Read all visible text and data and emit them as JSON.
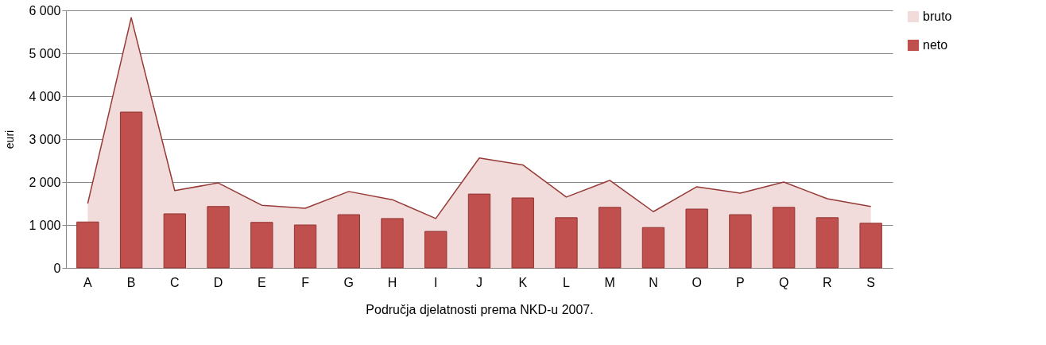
{
  "chart_data": {
    "type": "bar",
    "xlabel": "Područja djelatnosti prema  NKD-u 2007.",
    "ylabel": "euri",
    "categories": [
      "A",
      "B",
      "C",
      "D",
      "E",
      "F",
      "G",
      "H",
      "I",
      "J",
      "K",
      "L",
      "M",
      "N",
      "O",
      "P",
      "Q",
      "R",
      "S"
    ],
    "series": [
      {
        "name": "bruto",
        "type": "area",
        "color": "#f2dcdb",
        "values": [
          1500,
          5830,
          1800,
          1980,
          1460,
          1390,
          1780,
          1590,
          1150,
          2560,
          2400,
          1650,
          2040,
          1310,
          1890,
          1740,
          2000,
          1610,
          1430
        ]
      },
      {
        "name": "neto",
        "color": "#c0504d",
        "values": [
          1070,
          3630,
          1260,
          1430,
          1060,
          1000,
          1240,
          1150,
          850,
          1720,
          1630,
          1170,
          1410,
          940,
          1370,
          1240,
          1410,
          1170,
          1040
        ]
      }
    ],
    "ylim": [
      0,
      6000
    ],
    "yticks": [
      {
        "value": 0,
        "label": "0"
      },
      {
        "value": 1000,
        "label": "1 000"
      },
      {
        "value": 2000,
        "label": "2 000"
      },
      {
        "value": 3000,
        "label": "3 000"
      },
      {
        "value": 4000,
        "label": "4 000"
      },
      {
        "value": 5000,
        "label": "5 000"
      },
      {
        "value": 6000,
        "label": "6 000"
      }
    ],
    "grid": "y",
    "legend": "right"
  }
}
